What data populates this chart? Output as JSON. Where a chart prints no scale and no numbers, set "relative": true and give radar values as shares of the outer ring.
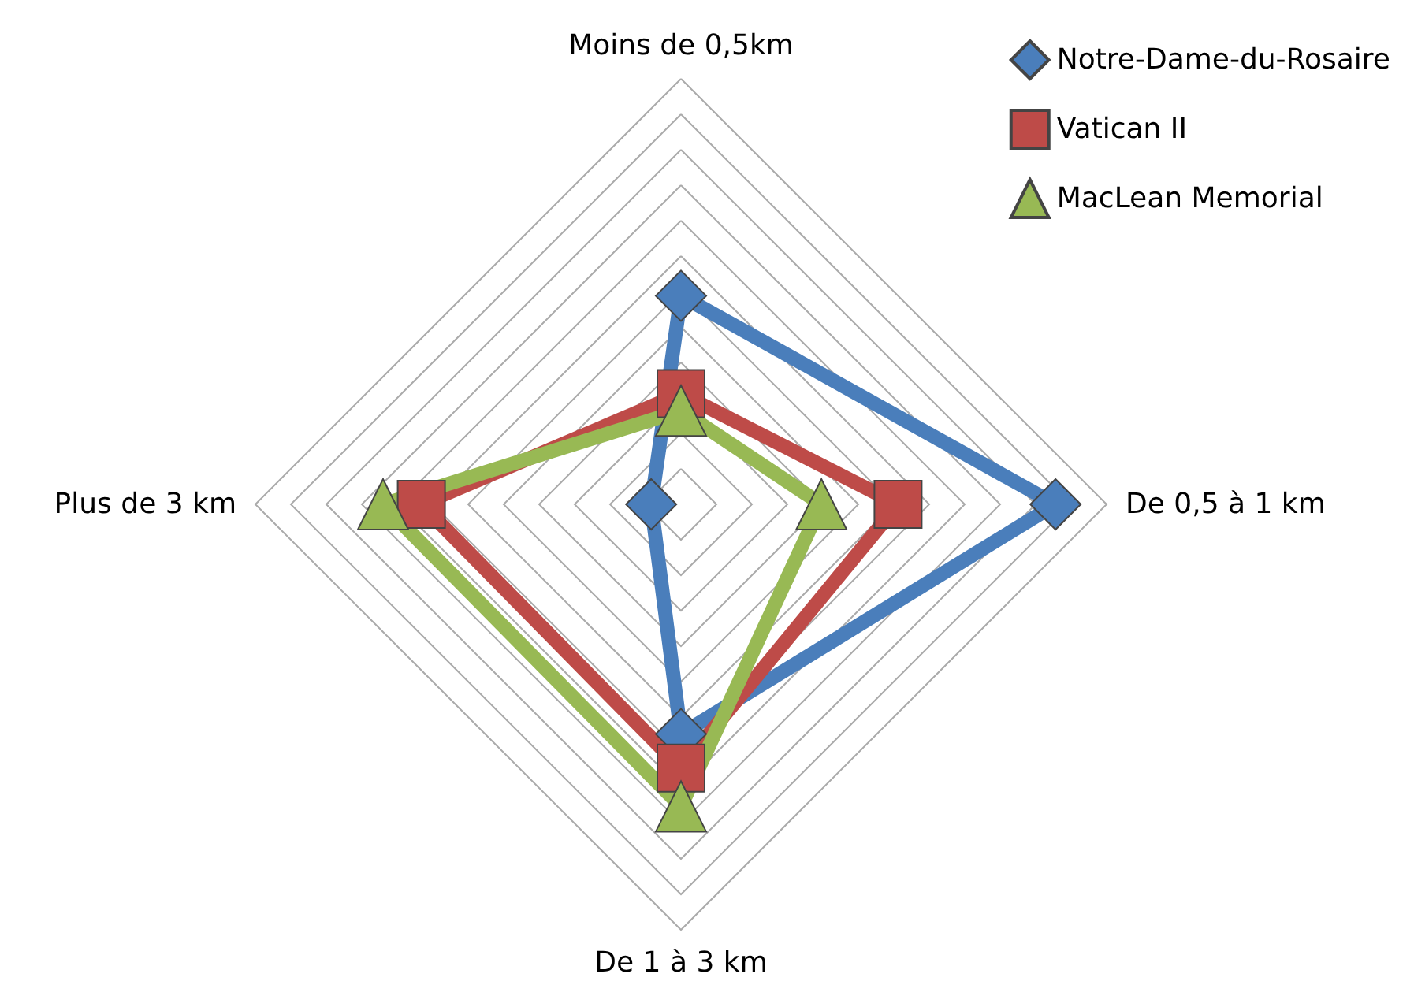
{
  "chart_data": {
    "type": "radar",
    "relative": true,
    "categories": [
      "Moins de 0,5km",
      "De 0,5 à 1 km",
      "De 1 à 3 km",
      "Plus de 3 km"
    ],
    "grid": true,
    "legend": "top right",
    "line_style": "solid",
    "series": [
      {
        "name": "Notre-Dame-du-Rosaire",
        "color": "#4a7ebb",
        "marker": "diamond",
        "values": [
          0.49,
          0.88,
          0.54,
          0.07
        ]
      },
      {
        "name": "Vatican II",
        "color": "#be4b48",
        "marker": "square",
        "values": [
          0.26,
          0.51,
          0.62,
          0.61
        ]
      },
      {
        "name": "MacLean Memorial",
        "color": "#98b954",
        "marker": "triangle",
        "values": [
          0.22,
          0.33,
          0.71,
          0.7
        ]
      }
    ]
  }
}
